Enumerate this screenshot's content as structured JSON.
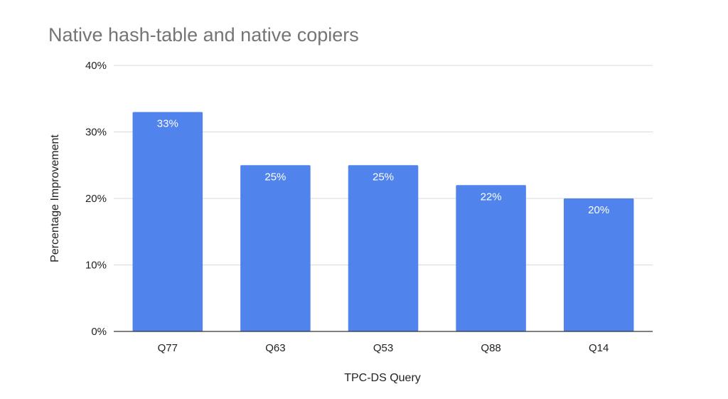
{
  "chart_data": {
    "type": "bar",
    "title": "Native hash-table and native copiers",
    "xlabel": "TPC-DS Query",
    "ylabel": "Percentage Improvement",
    "categories": [
      "Q77",
      "Q63",
      "Q53",
      "Q88",
      "Q14"
    ],
    "values": [
      33,
      25,
      25,
      22,
      20
    ],
    "data_labels": [
      "33%",
      "25%",
      "25%",
      "22%",
      "20%"
    ],
    "ylim": [
      0,
      40
    ],
    "yticks": [
      0,
      10,
      20,
      30,
      40
    ],
    "ytick_labels": [
      "0%",
      "10%",
      "20%",
      "30%",
      "40%"
    ],
    "grid": true,
    "legend": "none",
    "colors": {
      "bar": "#5083ec",
      "grid": "#d9d9d9",
      "axis": "#333333"
    }
  }
}
